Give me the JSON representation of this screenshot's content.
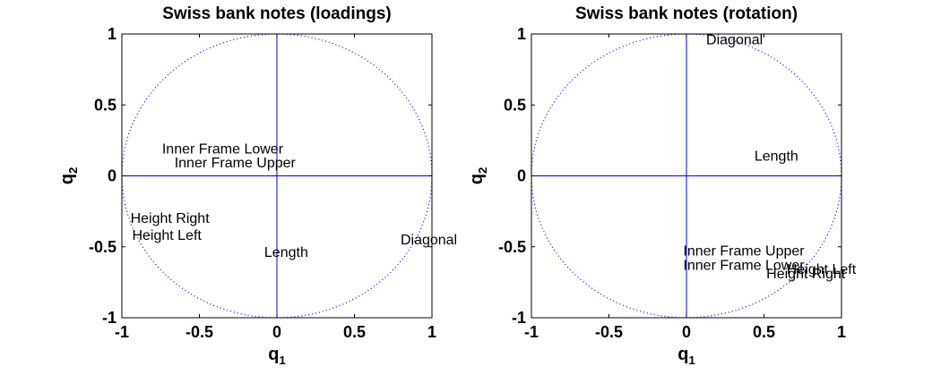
{
  "chart_data": [
    {
      "type": "scatter",
      "title": "Swiss bank notes (loadings)",
      "xlabel": "q",
      "xlabel_sub": "1",
      "ylabel": "q",
      "ylabel_sub": "2",
      "xlim": [
        -1,
        1
      ],
      "ylim": [
        -1,
        1
      ],
      "xticks": [
        "-1",
        "-0.5",
        "0",
        "0.5",
        "1"
      ],
      "yticks": [
        "-1",
        "-0.5",
        "0",
        "0.5",
        "1"
      ],
      "points": [
        {
          "label": "Inner Frame Lower",
          "x": -0.35,
          "y": 0.19
        },
        {
          "label": "Inner Frame Upper",
          "x": -0.27,
          "y": 0.09
        },
        {
          "label": "Height Right",
          "x": -0.69,
          "y": -0.3
        },
        {
          "label": "Height Left",
          "x": -0.71,
          "y": -0.42
        },
        {
          "label": "Length",
          "x": 0.06,
          "y": -0.54
        },
        {
          "label": "Diagonal",
          "x": 0.98,
          "y": -0.45
        }
      ]
    },
    {
      "type": "scatter",
      "title": "Swiss bank notes (rotation)",
      "xlabel": "q",
      "xlabel_sub": "1",
      "ylabel": "q",
      "ylabel_sub": "2",
      "xlim": [
        -1,
        1
      ],
      "ylim": [
        -1,
        1
      ],
      "xticks": [
        "-1",
        "-0.5",
        "0",
        "0.5",
        "1"
      ],
      "yticks": [
        "-1",
        "-0.5",
        "0",
        "0.5",
        "1"
      ],
      "points": [
        {
          "label": "Diagonal",
          "x": 0.31,
          "y": 0.96
        },
        {
          "label": "Length",
          "x": 0.58,
          "y": 0.14
        },
        {
          "label": "Inner Frame Upper",
          "x": 0.37,
          "y": -0.53
        },
        {
          "label": "Inner Frame Lower",
          "x": 0.37,
          "y": -0.63
        },
        {
          "label": "Height Left",
          "x": 0.87,
          "y": -0.66
        },
        {
          "label": "Height Right",
          "x": 0.77,
          "y": -0.69
        }
      ]
    }
  ]
}
